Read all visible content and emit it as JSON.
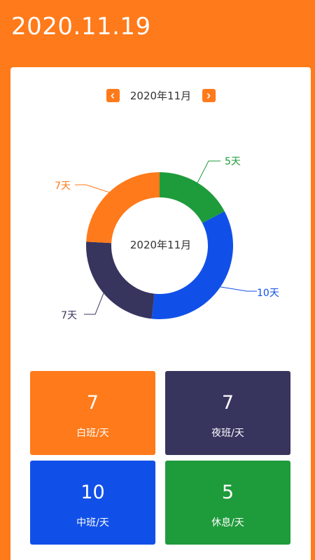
{
  "header": {
    "date": "2020.11.19"
  },
  "nav": {
    "month": "2020年11月",
    "prev_glyph": "‹",
    "next_glyph": "›"
  },
  "chart_data": {
    "type": "pie",
    "donut": true,
    "center_label": "2020年11月",
    "slices": [
      {
        "name": "休息",
        "value": 5,
        "label": "5天",
        "color": "#1E9B3B"
      },
      {
        "name": "中班",
        "value": 10,
        "label": "10天",
        "color": "#1150E8"
      },
      {
        "name": "夜班",
        "value": 7,
        "label": "7天",
        "color": "#37345E"
      },
      {
        "name": "白班",
        "value": 7,
        "label": "7天",
        "color": "#FF7A1A"
      }
    ]
  },
  "tiles": [
    {
      "value": "7",
      "label": "白班/天",
      "color": "#FF7A1A"
    },
    {
      "value": "7",
      "label": "夜班/天",
      "color": "#37345E"
    },
    {
      "value": "10",
      "label": "中班/天",
      "color": "#1150E8"
    },
    {
      "value": "5",
      "label": "休息/天",
      "color": "#1E9B3B"
    }
  ]
}
